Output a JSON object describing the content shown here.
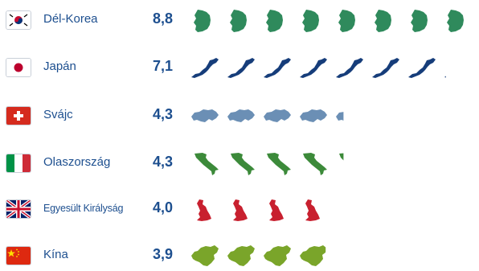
{
  "chart_data": {
    "type": "bar",
    "categories": [
      "Dél-Korea",
      "Japán",
      "Svájc",
      "Olaszország",
      "Egyesült Királyság",
      "Kína"
    ],
    "values": [
      8.8,
      7.1,
      4.3,
      4.3,
      4.0,
      3.9
    ],
    "value_labels": [
      "8,8",
      "7,1",
      "4,3",
      "4,3",
      "4,0",
      "3,9"
    ],
    "units_per_icon": 1,
    "icon_colors": [
      "#2f8a5c",
      "#163d7a",
      "#6b8fb5",
      "#3c8a3a",
      "#c8202f",
      "#7aa52a"
    ],
    "icons": [
      "south-korea-shape-icon",
      "japan-shape-icon",
      "switzerland-shape-icon",
      "italy-shape-icon",
      "uk-shape-icon",
      "china-shape-icon"
    ],
    "flags": [
      "south-korea-flag-icon",
      "japan-flag-icon",
      "switzerland-flag-icon",
      "italy-flag-icon",
      "uk-flag-icon",
      "china-flag-icon"
    ]
  }
}
